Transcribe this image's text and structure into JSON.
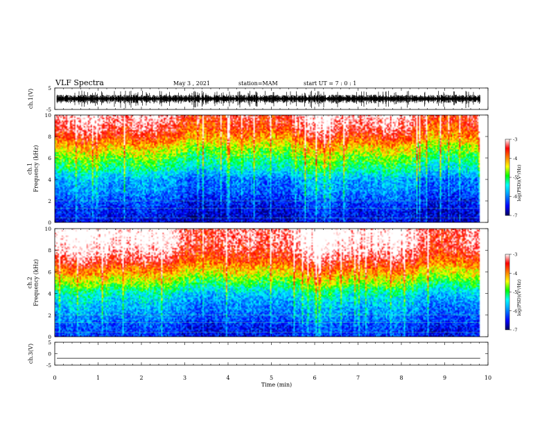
{
  "header": {
    "title": "VLF Spectra",
    "date": "May 3  , 2021",
    "station": "station=MAM",
    "start_time": "start  UT  =   7 : 0  : 1"
  },
  "chart_data": [
    {
      "type": "line",
      "panel": "ch.1 waveform",
      "ylabel": "ch.1(V)",
      "ylim": [
        -5,
        5
      ],
      "yticks": [
        "5",
        "-5"
      ],
      "xlim": [
        0,
        10
      ],
      "data_end_min": 9.82,
      "note": "dense noise-like waveform, amplitude roughly ±2 V with spikes"
    },
    {
      "type": "heatmap",
      "panel": "ch.1 spectrogram",
      "ylabel": "ch.1\nFrequency (kHz)",
      "ylim": [
        0,
        10
      ],
      "yticks": [
        "0",
        "2",
        "4",
        "6",
        "8",
        "10"
      ],
      "xlim": [
        0,
        10
      ],
      "data_end_min": 9.82,
      "profile_khz_vs_log_psd": [
        [
          0,
          -6.6
        ],
        [
          1,
          -6.5
        ],
        [
          2,
          -6.3
        ],
        [
          3,
          -6.0
        ],
        [
          4,
          -5.9
        ],
        [
          5,
          -5.3
        ],
        [
          6,
          -4.9
        ],
        [
          7,
          -4.4
        ],
        [
          8,
          -3.8
        ],
        [
          9,
          -3.4
        ],
        [
          10,
          -3.2
        ]
      ],
      "colorbar": {
        "label": "log(PSD)(V²/Hz)",
        "ticks": [
          "-3",
          "-4",
          "-5",
          "-6",
          "-7"
        ],
        "range": [
          -7,
          -3
        ]
      }
    },
    {
      "type": "heatmap",
      "panel": "ch.2 spectrogram",
      "ylabel": "ch.2\nFrequency (kHz)",
      "ylim": [
        0,
        10
      ],
      "yticks": [
        "0",
        "2",
        "4",
        "6",
        "8",
        "10"
      ],
      "xlim": [
        0,
        10
      ],
      "data_end_min": 9.82,
      "profile_khz_vs_log_psd": [
        [
          0,
          -6.4
        ],
        [
          1,
          -6.3
        ],
        [
          2,
          -6.0
        ],
        [
          3,
          -5.8
        ],
        [
          4,
          -5.5
        ],
        [
          5,
          -4.8
        ],
        [
          6,
          -4.2
        ],
        [
          7,
          -3.6
        ],
        [
          8,
          -3.2
        ],
        [
          9,
          -3.0
        ],
        [
          10,
          -3.0
        ]
      ],
      "colorbar": {
        "label": "log(PSD)(V²/Hz)",
        "ticks": [
          "-3",
          "-4",
          "-5",
          "-6",
          "-7"
        ],
        "range": [
          -7,
          -3
        ]
      }
    },
    {
      "type": "line",
      "panel": "ch.3 waveform",
      "ylabel": "ch.3(V)",
      "ylim": [
        -5,
        5
      ],
      "yticks": [
        "5",
        "0",
        "-5"
      ],
      "xlim": [
        0,
        10
      ],
      "value_v": -2,
      "data_end_min": 9.82
    }
  ],
  "xaxis": {
    "label": "Time (min)",
    "ticks": [
      "0",
      "1",
      "2",
      "3",
      "4",
      "5",
      "6",
      "7",
      "8",
      "9",
      "10"
    ],
    "range": [
      0,
      10
    ]
  },
  "colormap": [
    "#000060",
    "#0000ff",
    "#00b0ff",
    "#00ffff",
    "#00ff00",
    "#ffff00",
    "#ff8000",
    "#ff0000",
    "#ffffff"
  ]
}
